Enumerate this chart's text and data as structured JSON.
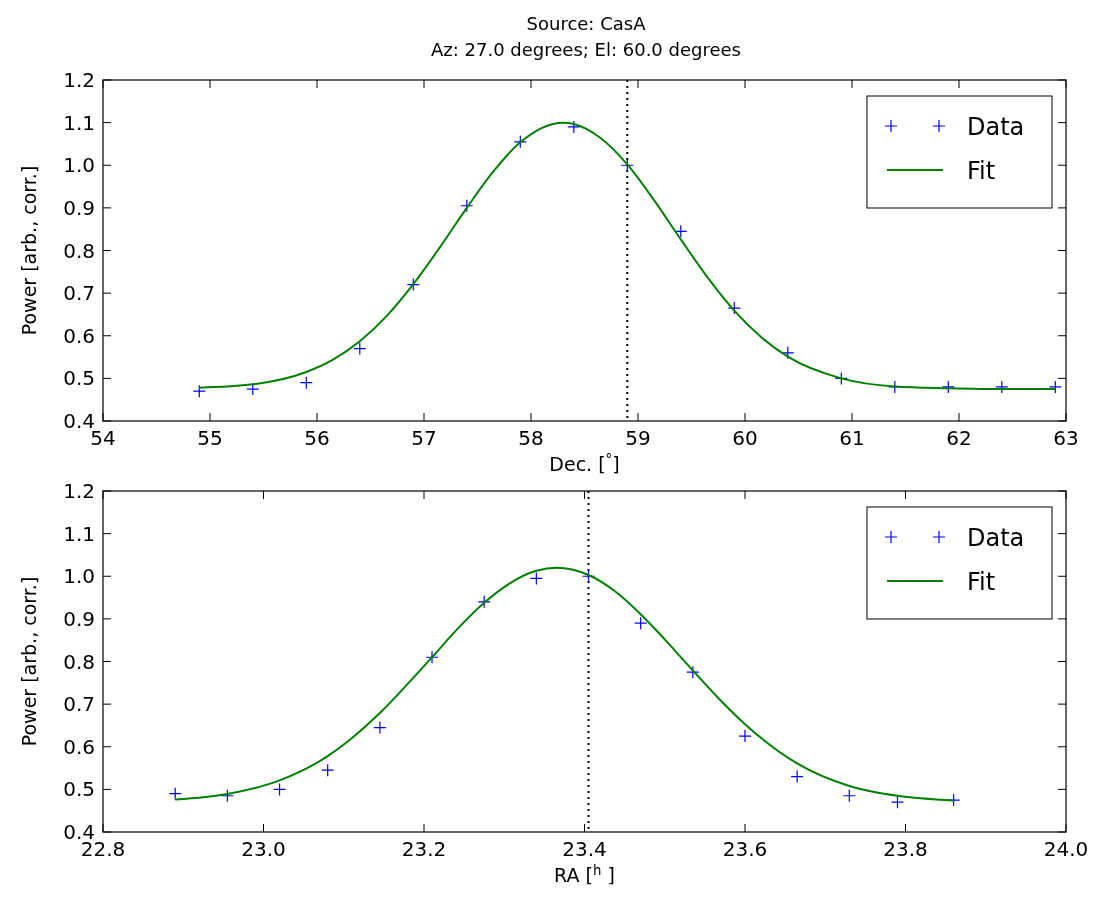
{
  "chart_data": [
    {
      "type": "scatter",
      "title": "Source: CasA",
      "subtitle": "Az: 27.0 degrees; El: 60.0 degrees",
      "xlabel": "Dec. [$^{°}$]",
      "ylabel": "Power [arb., corr.]",
      "xlim": [
        54,
        63
      ],
      "xticks": [
        54,
        55,
        56,
        57,
        58,
        59,
        60,
        61,
        62,
        63
      ],
      "ylim": [
        0.4,
        1.2
      ],
      "yticks": [
        {
          "value": 0.4,
          "label": "0.4"
        },
        {
          "value": 0.5,
          "label": "0.5"
        },
        {
          "value": 0.6,
          "label": "0.6"
        },
        {
          "value": 0.7,
          "label": "0.7"
        },
        {
          "value": 0.8,
          "label": "0.8"
        },
        {
          "value": 0.9,
          "label": "0.9"
        },
        {
          "value": 1.0,
          "label": "1.0"
        },
        {
          "value": 1.1,
          "label": "1.1"
        },
        {
          "value": 1.2,
          "label": "1.2"
        }
      ],
      "grid": false,
      "legend": "top right",
      "series": [
        {
          "name": "Data",
          "marker": "cross",
          "color": "#0000ff",
          "x": [
            54.9,
            55.4,
            55.9,
            56.4,
            56.9,
            57.4,
            57.9,
            58.4,
            58.9,
            59.4,
            59.9,
            60.4,
            60.9,
            61.4,
            61.9,
            62.4,
            62.9
          ],
          "values": [
            0.47,
            0.475,
            0.49,
            0.57,
            0.72,
            0.905,
            1.055,
            1.09,
            1.0,
            0.845,
            0.665,
            0.56,
            0.5,
            0.48,
            0.48,
            0.48,
            0.48
          ]
        },
        {
          "name": "Fit",
          "type": "line",
          "marker": "none",
          "line_style": "solid",
          "color": "#008000",
          "x": [
            54.9,
            55.4,
            55.9,
            56.15,
            56.4,
            56.65,
            56.9,
            57.15,
            57.4,
            57.65,
            57.9,
            58.3,
            58.4,
            58.65,
            58.9,
            59.15,
            59.4,
            59.65,
            59.9,
            60.15,
            60.4,
            60.9,
            61.4,
            61.9,
            62.4,
            62.9
          ],
          "values": [
            0.478,
            0.486,
            0.515,
            0.544,
            0.587,
            0.646,
            0.721,
            0.808,
            0.9,
            0.986,
            1.054,
            1.1,
            1.097,
            1.064,
            1.002,
            0.918,
            0.826,
            0.737,
            0.659,
            0.597,
            0.551,
            0.5,
            0.481,
            0.477,
            0.475,
            0.475
          ]
        }
      ],
      "ref_lines": [
        {
          "axis": "x",
          "value": 58.9,
          "color": "#000000",
          "line_style": "dotted"
        }
      ]
    },
    {
      "type": "scatter",
      "xlabel": "RA [$^{h}$ ]",
      "ylabel": "Power [arb., corr.]",
      "xlim": [
        22.8,
        24.0
      ],
      "xticks": [
        {
          "value": 22.8,
          "label": "22.8"
        },
        {
          "value": 23.0,
          "label": "23.0"
        },
        {
          "value": 23.2,
          "label": "23.2"
        },
        {
          "value": 23.4,
          "label": "23.4"
        },
        {
          "value": 23.6,
          "label": "23.6"
        },
        {
          "value": 23.8,
          "label": "23.8"
        },
        {
          "value": 24.0,
          "label": "24.0"
        }
      ],
      "ylim": [
        0.4,
        1.2
      ],
      "yticks": [
        {
          "value": 0.4,
          "label": "0.4"
        },
        {
          "value": 0.5,
          "label": "0.5"
        },
        {
          "value": 0.6,
          "label": "0.6"
        },
        {
          "value": 0.7,
          "label": "0.7"
        },
        {
          "value": 0.8,
          "label": "0.8"
        },
        {
          "value": 0.9,
          "label": "0.9"
        },
        {
          "value": 1.0,
          "label": "1.0"
        },
        {
          "value": 1.1,
          "label": "1.1"
        },
        {
          "value": 1.2,
          "label": "1.2"
        }
      ],
      "grid": false,
      "legend": "top right",
      "series": [
        {
          "name": "Data",
          "marker": "cross",
          "color": "#0000ff",
          "x": [
            22.89,
            22.955,
            23.02,
            23.08,
            23.145,
            23.21,
            23.275,
            23.34,
            23.405,
            23.47,
            23.535,
            23.6,
            23.665,
            23.73,
            23.79,
            23.86
          ],
          "values": [
            0.49,
            0.485,
            0.5,
            0.545,
            0.645,
            0.81,
            0.94,
            0.995,
            1.0,
            0.89,
            0.775,
            0.625,
            0.53,
            0.485,
            0.47,
            0.475
          ]
        },
        {
          "name": "Fit",
          "type": "line",
          "marker": "none",
          "line_style": "solid",
          "color": "#008000",
          "x": [
            22.89,
            22.955,
            23.02,
            23.08,
            23.11,
            23.145,
            23.18,
            23.21,
            23.24,
            23.275,
            23.34,
            23.365,
            23.405,
            23.44,
            23.47,
            23.5,
            23.535,
            23.57,
            23.6,
            23.665,
            23.73,
            23.79,
            23.86
          ],
          "values": [
            0.476,
            0.489,
            0.521,
            0.578,
            0.62,
            0.679,
            0.748,
            0.81,
            0.873,
            0.938,
            1.013,
            1.02,
            1.003,
            0.962,
            0.911,
            0.852,
            0.779,
            0.708,
            0.653,
            0.561,
            0.508,
            0.485,
            0.474
          ]
        }
      ],
      "ref_lines": [
        {
          "axis": "x",
          "value": 23.405,
          "color": "#000000",
          "line_style": "dotted"
        }
      ]
    }
  ]
}
